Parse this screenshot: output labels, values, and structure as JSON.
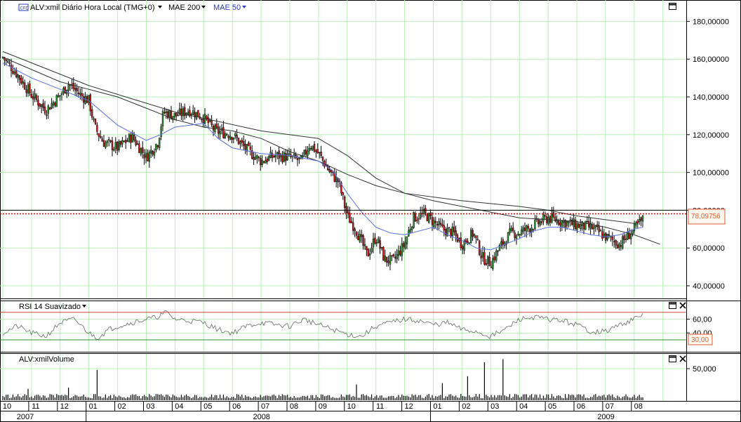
{
  "main_panel": {
    "symbol_label": "ALV:xmil Diário Hora Local (TMG+0)",
    "cfd_badge": "CFD",
    "mae200_label": "MAE 200",
    "mae50_label": "MAE 50",
    "price_marker": "78,09756"
  },
  "rsi_panel": {
    "label": "RSI 14 Suavizado",
    "level_marker": "30,00"
  },
  "volume_panel": {
    "label": "ALV:xmilVolume"
  },
  "colors": {
    "up_candle": "#2e8b2e",
    "down_candle": "#c0181c",
    "mae50": "#5a6ee6",
    "mae200": "#333333",
    "grid": "#b6f0b6",
    "price_marker": "#e05a30",
    "resistance_line": "#cc0000"
  },
  "chart_data": [
    {
      "type": "candlestick",
      "ylim": [
        30,
        190
      ],
      "yticks": [
        "180,00000",
        "160,00000",
        "140,00000",
        "120,00000",
        "100,00000",
        "80,00000",
        "60,00000",
        "40,00000"
      ],
      "ytick_values": [
        180,
        160,
        140,
        120,
        100,
        80,
        60,
        40
      ],
      "months": [
        "10",
        "11",
        "12",
        "01",
        "02",
        "03",
        "04",
        "05",
        "06",
        "07",
        "08",
        "09",
        "10",
        "11",
        "12",
        "01",
        "02",
        "03",
        "04",
        "05",
        "06",
        "07",
        "08"
      ],
      "years": [
        "2007",
        "2008",
        "2009"
      ],
      "close_path": [
        [
          0,
          161
        ],
        [
          0.5,
          152
        ],
        [
          1,
          141
        ],
        [
          1.5,
          133
        ],
        [
          2,
          141
        ],
        [
          2.3,
          147
        ],
        [
          2.7,
          141
        ],
        [
          3,
          138
        ],
        [
          3.2,
          124
        ],
        [
          3.5,
          116
        ],
        [
          4,
          113
        ],
        [
          4.5,
          119
        ],
        [
          5,
          108
        ],
        [
          5.4,
          116
        ],
        [
          5.6,
          132
        ],
        [
          6,
          130
        ],
        [
          6.5,
          133
        ],
        [
          7,
          129
        ],
        [
          7.4,
          122
        ],
        [
          8,
          120
        ],
        [
          8.5,
          112
        ],
        [
          9,
          106
        ],
        [
          9.5,
          109
        ],
        [
          10,
          108
        ],
        [
          10.4,
          106
        ],
        [
          10.7,
          115
        ],
        [
          11,
          110
        ],
        [
          11.4,
          100
        ],
        [
          11.7,
          95
        ],
        [
          12,
          77
        ],
        [
          12.3,
          70
        ],
        [
          12.7,
          56
        ],
        [
          13,
          66
        ],
        [
          13.3,
          54
        ],
        [
          13.6,
          53
        ],
        [
          14,
          62
        ],
        [
          14.3,
          76
        ],
        [
          14.7,
          78
        ],
        [
          15,
          74
        ],
        [
          15.3,
          70
        ],
        [
          15.7,
          68
        ],
        [
          16,
          62
        ],
        [
          16.4,
          68
        ],
        [
          16.7,
          55
        ],
        [
          17,
          52
        ],
        [
          17.3,
          60
        ],
        [
          17.7,
          68
        ],
        [
          18,
          68
        ],
        [
          18.5,
          72
        ],
        [
          19,
          76
        ],
        [
          19.5,
          74
        ],
        [
          20,
          72
        ],
        [
          20.5,
          71
        ],
        [
          21,
          66
        ],
        [
          21.5,
          62
        ],
        [
          22,
          70
        ],
        [
          22.3,
          75
        ]
      ],
      "last_price": 78.09756,
      "resistance_level": 80,
      "mae50": [
        [
          0,
          158
        ],
        [
          1,
          150
        ],
        [
          2,
          144
        ],
        [
          3,
          138
        ],
        [
          4,
          125
        ],
        [
          5,
          117
        ],
        [
          5.5,
          120
        ],
        [
          6,
          124
        ],
        [
          7,
          126
        ],
        [
          7.5,
          118
        ],
        [
          8,
          113
        ],
        [
          9,
          110
        ],
        [
          10,
          109
        ],
        [
          11,
          106
        ],
        [
          11.5,
          101
        ],
        [
          12,
          89
        ],
        [
          12.5,
          79
        ],
        [
          13,
          71
        ],
        [
          13.5,
          68
        ],
        [
          14,
          67
        ],
        [
          15,
          71
        ],
        [
          15.5,
          67
        ],
        [
          16,
          64
        ],
        [
          16.5,
          60
        ],
        [
          17,
          59
        ],
        [
          17.5,
          62
        ],
        [
          18,
          65
        ],
        [
          18.5,
          69
        ],
        [
          19,
          71
        ],
        [
          19.5,
          71
        ],
        [
          20,
          69
        ],
        [
          20.5,
          67
        ],
        [
          21,
          66
        ],
        [
          21.5,
          67
        ],
        [
          22,
          70
        ],
        [
          22.3,
          71
        ]
      ],
      "mae200": [
        [
          0,
          161
        ],
        [
          2,
          148
        ],
        [
          4,
          140
        ],
        [
          5,
          134
        ],
        [
          6,
          128
        ],
        [
          7,
          124
        ],
        [
          8,
          122
        ],
        [
          9,
          118
        ],
        [
          10,
          111
        ],
        [
          11,
          106
        ],
        [
          12,
          99
        ],
        [
          13,
          93
        ],
        [
          14,
          89
        ],
        [
          15,
          85
        ],
        [
          16,
          82
        ],
        [
          17,
          79
        ],
        [
          18,
          76
        ],
        [
          19,
          75
        ],
        [
          20,
          74
        ],
        [
          21,
          71
        ],
        [
          22,
          67
        ],
        [
          22.9,
          62
        ]
      ],
      "mae200_upper": [
        [
          0,
          164
        ],
        [
          3,
          146
        ],
        [
          6,
          132
        ],
        [
          9,
          122
        ],
        [
          11,
          118
        ],
        [
          12,
          109
        ],
        [
          13,
          97
        ],
        [
          14,
          89
        ],
        [
          16,
          85
        ],
        [
          18,
          82
        ],
        [
          19,
          80
        ],
        [
          20,
          77
        ],
        [
          21,
          75
        ],
        [
          22,
          73
        ]
      ]
    },
    {
      "type": "line",
      "title": "RSI 14 Suavizado",
      "yticks": [
        "60,00",
        "40,00"
      ],
      "ytick_values": [
        60,
        40
      ],
      "ylim": [
        20,
        75
      ],
      "levels": [
        30,
        70
      ],
      "path": [
        [
          0,
          40
        ],
        [
          0.5,
          50
        ],
        [
          1,
          40
        ],
        [
          1.5,
          35
        ],
        [
          2,
          55
        ],
        [
          2.5,
          60
        ],
        [
          3,
          40
        ],
        [
          3.3,
          33
        ],
        [
          3.7,
          45
        ],
        [
          4,
          50
        ],
        [
          4.5,
          55
        ],
        [
          5,
          60
        ],
        [
          5.3,
          62
        ],
        [
          5.7,
          70
        ],
        [
          6,
          60
        ],
        [
          6.5,
          58
        ],
        [
          7,
          55
        ],
        [
          7.5,
          45
        ],
        [
          8,
          40
        ],
        [
          8.5,
          50
        ],
        [
          9,
          55
        ],
        [
          9.5,
          52
        ],
        [
          10,
          50
        ],
        [
          10.5,
          60
        ],
        [
          11,
          52
        ],
        [
          11.5,
          45
        ],
        [
          12,
          38
        ],
        [
          12.5,
          35
        ],
        [
          13,
          50
        ],
        [
          13.5,
          55
        ],
        [
          14,
          60
        ],
        [
          14.5,
          58
        ],
        [
          15,
          52
        ],
        [
          15.5,
          55
        ],
        [
          16,
          45
        ],
        [
          16.5,
          42
        ],
        [
          17,
          35
        ],
        [
          17.5,
          45
        ],
        [
          18,
          60
        ],
        [
          18.5,
          63
        ],
        [
          19,
          60
        ],
        [
          19.5,
          58
        ],
        [
          20,
          52
        ],
        [
          20.5,
          42
        ],
        [
          21,
          42
        ],
        [
          21.5,
          52
        ],
        [
          22,
          60
        ],
        [
          22.3,
          66
        ]
      ]
    },
    {
      "type": "bar",
      "title": "ALV:xmilVolume",
      "yticks": [
        "50,000"
      ],
      "ytick_values": [
        50000
      ],
      "ylim": [
        0,
        70000
      ],
      "spikes": [
        [
          0.9,
          18000
        ],
        [
          2.3,
          20000
        ],
        [
          3.3,
          48000
        ],
        [
          12.3,
          25000
        ],
        [
          15.3,
          27000
        ],
        [
          16.2,
          38000
        ],
        [
          16.8,
          60000
        ],
        [
          17.4,
          65000
        ]
      ]
    }
  ]
}
